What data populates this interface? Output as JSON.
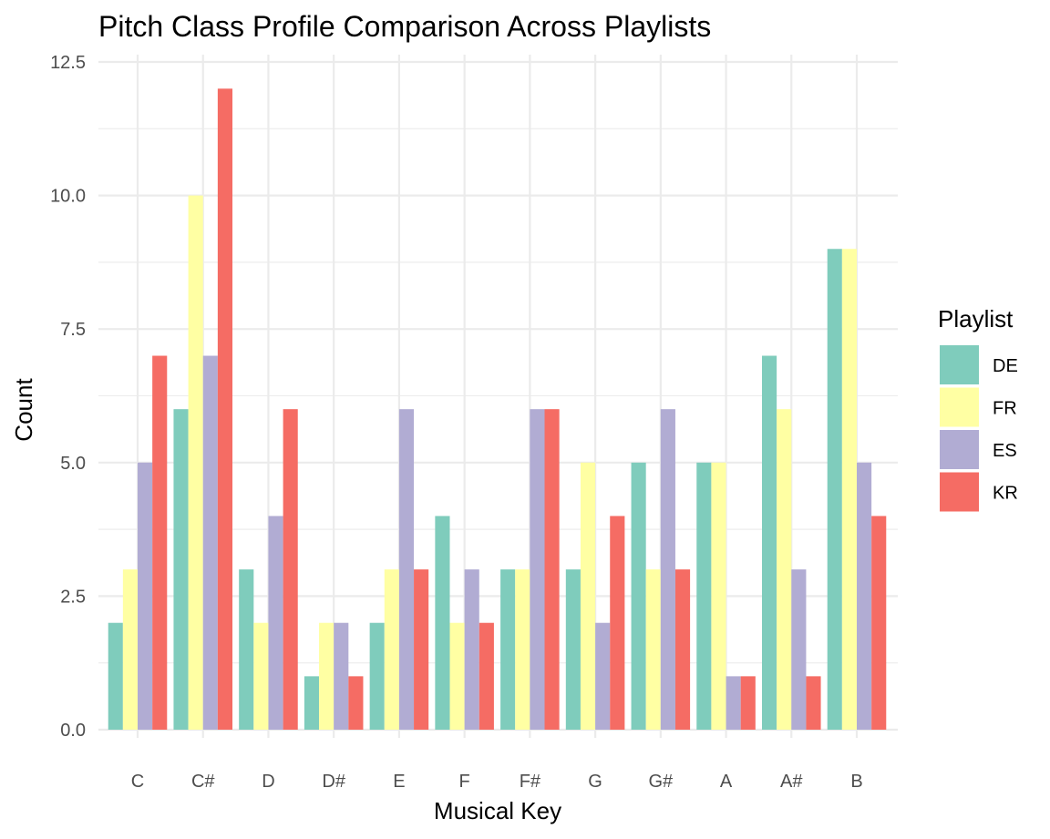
{
  "chart_data": {
    "type": "bar",
    "title": "Pitch Class Profile Comparison Across Playlists",
    "xlabel": "Musical Key",
    "ylabel": "Count",
    "ylim": [
      0,
      12.5
    ],
    "yticks": [
      "0.0",
      "2.5",
      "5.0",
      "7.5",
      "10.0",
      "12.5"
    ],
    "grid": true,
    "legend_title": "Playlist",
    "legend_position": "right",
    "categories": [
      "C",
      "C#",
      "D",
      "D#",
      "E",
      "F",
      "F#",
      "G",
      "G#",
      "A",
      "A#",
      "B"
    ],
    "series": [
      {
        "name": "DE",
        "color": "#7fccbc",
        "values": [
          2,
          6,
          3,
          1,
          2,
          4,
          3,
          3,
          5,
          5,
          7,
          9
        ]
      },
      {
        "name": "FR",
        "color": "#ffffa3",
        "values": [
          3,
          10,
          2,
          2,
          3,
          2,
          3,
          5,
          3,
          5,
          6,
          9
        ]
      },
      {
        "name": "ES",
        "color": "#b1acd3",
        "values": [
          5,
          7,
          4,
          2,
          6,
          3,
          6,
          2,
          6,
          1,
          3,
          5
        ]
      },
      {
        "name": "KR",
        "color": "#f56c64",
        "values": [
          7,
          12,
          6,
          1,
          3,
          2,
          6,
          4,
          3,
          1,
          1,
          4
        ]
      }
    ]
  }
}
